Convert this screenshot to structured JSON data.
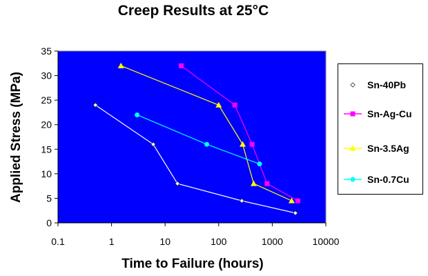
{
  "chart_data": {
    "type": "line",
    "title": "Creep Results at 25°C",
    "xlabel": "Time to Failure (hours)",
    "ylabel": "Applied Stress (MPa)",
    "xscale": "log",
    "xlim": [
      0.1,
      10000
    ],
    "ylim": [
      0,
      35
    ],
    "x_ticks": [
      "0.1",
      "1",
      "10",
      "100",
      "1000",
      "10000"
    ],
    "y_ticks": [
      "0",
      "5",
      "10",
      "15",
      "20",
      "25",
      "30",
      "35"
    ],
    "plot_background": "#0000ff",
    "grid": false,
    "legend_position": "right",
    "series": [
      {
        "name": "Sn-40Pb",
        "color": "#ffffff",
        "marker": "diamond",
        "x": [
          0.5,
          6,
          17,
          270,
          2700
        ],
        "y": [
          24,
          16,
          8,
          4.5,
          2
        ]
      },
      {
        "name": "Sn-Ag-Cu",
        "color": "#ff00ff",
        "marker": "square",
        "x": [
          20,
          200,
          420,
          800,
          3000
        ],
        "y": [
          32,
          24,
          16,
          8,
          4.5
        ]
      },
      {
        "name": "Sn-3.5Ag",
        "color": "#ffff00",
        "marker": "triangle",
        "x": [
          1.5,
          100,
          280,
          450,
          2300
        ],
        "y": [
          32,
          24,
          16,
          8,
          4.5
        ]
      },
      {
        "name": "Sn-0.7Cu",
        "color": "#00ffff",
        "marker": "circle",
        "x": [
          3,
          60,
          580
        ],
        "y": [
          22,
          16,
          12
        ]
      }
    ]
  }
}
